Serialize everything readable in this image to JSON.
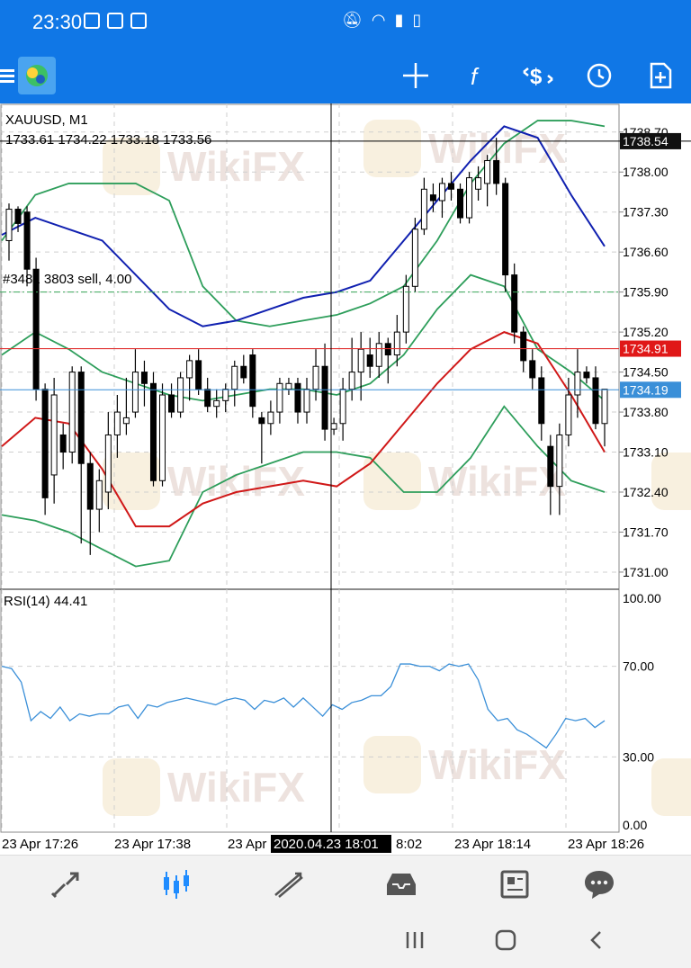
{
  "status_bar": {
    "time": "23:30",
    "icons": [
      "gallery-icon",
      "paw-icon",
      "app-icon",
      "mute-icon",
      "wifi-icon",
      "signal-icon",
      "battery-icon"
    ]
  },
  "toolbar": {
    "icons": [
      "menu-icon",
      "metatrader-logo",
      "crosshair-icon",
      "function-icon",
      "dollar-icon",
      "clock-icon",
      "new-order-icon"
    ]
  },
  "chart": {
    "symbol": "XAUUSD, M1",
    "ohlc": "1733.61 1734.22 1733.18 1733.56",
    "order_label": "#3481 3803 sell, 4.00",
    "watermark": "WikiFX",
    "price_ticks": [
      "1738.70",
      "1738.00",
      "1737.30",
      "1736.60",
      "1735.90",
      "1735.20",
      "1734.50",
      "1733.80",
      "1733.10",
      "1732.40",
      "1731.70",
      "1731.00"
    ],
    "crosshair_price": "1738.54",
    "order_price": "1734.91",
    "bid_price": "1734.19",
    "rsi_label": "RSI(14) 44.41",
    "rsi_ticks": [
      "100.00",
      "70.00",
      "30.00",
      "0.00"
    ],
    "time_labels": [
      "23 Apr 17:26",
      "23 Apr 17:38",
      "23 Apr",
      "8:02",
      "23 Apr 18:14",
      "23 Apr 18:26"
    ],
    "crosshair_time": "2020.04.23 18:01",
    "colors": {
      "bull": "#ffffff",
      "bear": "#000000",
      "bb_bands": "#2e9e5b",
      "ma_blue": "#1020b0",
      "ma_red": "#d01818",
      "order_line": "#e03030",
      "bid_line": "#3a8fd8",
      "rsi_line": "#3a8fd8",
      "accent": "#1077e6"
    }
  },
  "chart_data": {
    "type": "candlestick",
    "candles": [
      [
        1736.8,
        1737.45,
        1736.45,
        1737.35
      ],
      [
        1737.35,
        1737.4,
        1736.95,
        1737.1
      ],
      [
        1737.3,
        1737.4,
        1736.0,
        1736.3
      ],
      [
        1736.3,
        1736.5,
        1734.0,
        1734.2
      ],
      [
        1734.2,
        1734.3,
        1732.0,
        1732.3
      ],
      [
        1732.7,
        1734.4,
        1732.2,
        1734.1
      ],
      [
        1733.4,
        1733.6,
        1732.8,
        1733.1
      ],
      [
        1733.1,
        1734.6,
        1732.9,
        1734.5
      ],
      [
        1734.5,
        1734.6,
        1731.5,
        1732.9
      ],
      [
        1732.9,
        1733.1,
        1731.3,
        1732.1
      ],
      [
        1732.1,
        1732.8,
        1731.7,
        1732.6
      ],
      [
        1732.4,
        1733.8,
        1732.1,
        1733.4
      ],
      [
        1733.4,
        1734.1,
        1733.0,
        1733.8
      ],
      [
        1733.6,
        1734.4,
        1733.4,
        1733.7
      ],
      [
        1733.8,
        1734.9,
        1733.7,
        1734.5
      ],
      [
        1734.5,
        1734.7,
        1733.9,
        1734.3
      ],
      [
        1734.3,
        1734.5,
        1732.5,
        1732.6
      ],
      [
        1732.6,
        1734.3,
        1732.5,
        1734.1
      ],
      [
        1734.1,
        1734.3,
        1733.7,
        1733.8
      ],
      [
        1733.8,
        1734.5,
        1733.7,
        1734.4
      ],
      [
        1734.4,
        1734.8,
        1734.0,
        1734.7
      ],
      [
        1734.7,
        1734.9,
        1734.1,
        1734.2
      ],
      [
        1734.2,
        1734.4,
        1733.8,
        1733.9
      ],
      [
        1733.9,
        1734.2,
        1733.7,
        1734.0
      ],
      [
        1734.0,
        1734.3,
        1733.8,
        1734.2
      ],
      [
        1734.2,
        1734.7,
        1733.9,
        1734.6
      ],
      [
        1734.6,
        1734.8,
        1734.3,
        1734.4
      ],
      [
        1734.8,
        1734.9,
        1733.7,
        1733.9
      ],
      [
        1733.7,
        1733.8,
        1732.9,
        1733.6
      ],
      [
        1733.6,
        1734.0,
        1733.4,
        1733.8
      ],
      [
        1733.8,
        1734.4,
        1733.6,
        1734.3
      ],
      [
        1734.2,
        1734.4,
        1734.1,
        1734.3
      ],
      [
        1734.3,
        1734.4,
        1733.6,
        1733.8
      ],
      [
        1733.8,
        1734.4,
        1733.6,
        1734.2
      ],
      [
        1734.2,
        1734.9,
        1734.0,
        1734.6
      ],
      [
        1734.6,
        1735.0,
        1733.3,
        1733.5
      ],
      [
        1733.5,
        1733.7,
        1733.4,
        1733.6
      ],
      [
        1733.6,
        1734.4,
        1733.3,
        1734.2
      ],
      [
        1734.2,
        1735.1,
        1734.0,
        1734.5
      ],
      [
        1734.5,
        1735.2,
        1734.0,
        1734.9
      ],
      [
        1734.8,
        1735.1,
        1734.4,
        1734.6
      ],
      [
        1734.6,
        1735.2,
        1734.4,
        1735.0
      ],
      [
        1735.0,
        1735.1,
        1734.3,
        1734.8
      ],
      [
        1734.8,
        1735.5,
        1734.6,
        1735.2
      ],
      [
        1735.2,
        1736.2,
        1735.0,
        1736.0
      ],
      [
        1736.0,
        1737.2,
        1735.9,
        1737.0
      ],
      [
        1737.0,
        1737.9,
        1736.9,
        1737.7
      ],
      [
        1737.6,
        1737.8,
        1737.3,
        1737.5
      ],
      [
        1737.5,
        1737.9,
        1737.2,
        1737.8
      ],
      [
        1737.8,
        1738.0,
        1737.5,
        1737.7
      ],
      [
        1737.7,
        1737.8,
        1737.1,
        1737.2
      ],
      [
        1737.2,
        1738.0,
        1737.1,
        1737.9
      ],
      [
        1737.7,
        1738.1,
        1737.5,
        1737.9
      ],
      [
        1737.8,
        1738.3,
        1737.4,
        1738.2
      ],
      [
        1738.2,
        1738.6,
        1737.6,
        1737.8
      ],
      [
        1737.8,
        1737.9,
        1735.9,
        1736.2
      ],
      [
        1736.2,
        1736.4,
        1735.0,
        1735.2
      ],
      [
        1735.2,
        1735.3,
        1734.5,
        1734.7
      ],
      [
        1734.7,
        1734.9,
        1734.2,
        1734.4
      ],
      [
        1734.4,
        1734.6,
        1733.3,
        1733.6
      ],
      [
        1733.2,
        1733.4,
        1732.0,
        1732.5
      ],
      [
        1732.5,
        1733.6,
        1732.0,
        1733.4
      ],
      [
        1733.4,
        1734.4,
        1733.2,
        1734.1
      ],
      [
        1734.1,
        1734.9,
        1733.7,
        1734.5
      ],
      [
        1734.5,
        1734.6,
        1734.3,
        1734.4
      ],
      [
        1734.4,
        1734.6,
        1733.5,
        1733.6
      ],
      [
        1733.6,
        1734.2,
        1733.2,
        1734.2
      ]
    ],
    "bb_upper": [
      1736.8,
      1737.6,
      1737.8,
      1737.8,
      1737.8,
      1737.5,
      1736.0,
      1735.4,
      1735.3,
      1735.4,
      1735.5,
      1735.7,
      1736.0,
      1736.8,
      1737.8,
      1738.5,
      1738.9,
      1738.9,
      1738.8
    ],
    "bb_middle": [
      1734.8,
      1735.2,
      1734.9,
      1734.5,
      1734.3,
      1734.1,
      1734.0,
      1734.1,
      1734.2,
      1734.2,
      1734.1,
      1734.3,
      1734.8,
      1735.6,
      1736.2,
      1736.0,
      1734.9,
      1734.5,
      1734.0
    ],
    "bb_lower": [
      1732.0,
      1731.9,
      1731.7,
      1731.4,
      1731.1,
      1731.2,
      1732.4,
      1732.7,
      1732.9,
      1733.1,
      1733.1,
      1733.0,
      1732.4,
      1732.4,
      1733.0,
      1733.9,
      1733.2,
      1732.6,
      1732.4
    ],
    "ma_blue": [
      1736.9,
      1737.2,
      1737.0,
      1736.8,
      1736.2,
      1735.6,
      1735.3,
      1735.4,
      1735.6,
      1735.8,
      1735.9,
      1736.1,
      1736.8,
      1737.5,
      1738.2,
      1738.8,
      1738.6,
      1737.6,
      1736.7
    ],
    "ma_red": [
      1733.2,
      1733.7,
      1733.6,
      1732.8,
      1731.8,
      1731.8,
      1732.2,
      1732.4,
      1732.5,
      1732.6,
      1732.5,
      1732.9,
      1733.6,
      1734.3,
      1734.9,
      1735.2,
      1735.0,
      1734.1,
      1733.1
    ],
    "rsi": [
      70,
      69,
      63,
      46,
      50,
      47,
      52,
      46,
      49,
      48,
      49,
      49,
      52,
      53,
      47,
      53,
      52,
      54,
      55,
      56,
      55,
      54,
      53,
      55,
      56,
      55,
      51,
      55,
      54,
      56,
      52,
      56,
      52,
      48,
      53,
      51,
      54,
      55,
      57,
      57,
      61,
      71,
      71,
      70,
      70,
      68,
      71,
      70,
      71,
      64,
      51,
      46,
      47,
      42,
      40,
      37,
      34,
      40,
      47,
      46,
      47,
      43,
      46
    ],
    "ylim": [
      1730.7,
      1739.2
    ],
    "rsi_ylim": [
      0,
      100
    ]
  },
  "bottom_nav": {
    "items": [
      "quotes-icon",
      "chart-icon",
      "trade-icon",
      "history-icon",
      "news-icon",
      "chat-icon"
    ]
  },
  "sys_nav": {
    "items": [
      "recents-icon",
      "home-icon",
      "back-icon"
    ]
  }
}
